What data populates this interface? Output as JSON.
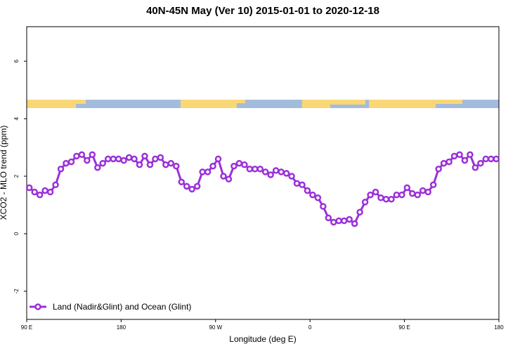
{
  "chart_data": {
    "type": "line",
    "title": "40N-45N May (Ver 10)   2015-01-01 to 2020-12-18",
    "x_label": "Longitude (deg E)",
    "y_label": "XCO2 - MLO trend (ppm)",
    "xlim": [
      90,
      540
    ],
    "ylim": [
      -2.98,
      7.2
    ],
    "xticks": [
      {
        "value": 90,
        "label": "90 E"
      },
      {
        "value": 180,
        "label": "180"
      },
      {
        "value": 270,
        "label": "90 W"
      },
      {
        "value": 360,
        "label": "0"
      },
      {
        "value": 450,
        "label": "90 E"
      },
      {
        "value": 540,
        "label": "180"
      }
    ],
    "yticks": [
      -2,
      0,
      2,
      4,
      6
    ],
    "legend_position": "bottom-left",
    "x": [
      92.5,
      97.5,
      102.5,
      107.5,
      112.5,
      117.5,
      122.5,
      127.5,
      132.5,
      137.5,
      142.5,
      147.5,
      152.5,
      157.5,
      162.5,
      167.5,
      172.5,
      177.5,
      182.5,
      187.5,
      192.5,
      197.5,
      202.5,
      207.5,
      212.5,
      217.5,
      222.5,
      227.5,
      232.5,
      237.5,
      242.5,
      247.5,
      252.5,
      257.5,
      262.5,
      267.5,
      272.5,
      277.5,
      282.5,
      287.5,
      292.5,
      297.5,
      302.5,
      307.5,
      312.5,
      317.5,
      322.5,
      327.5,
      332.5,
      337.5,
      342.5,
      347.5,
      352.5,
      357.5,
      362.5,
      367.5,
      372.5,
      377.5,
      382.5,
      387.5,
      392.5,
      397.5,
      402.5,
      407.5,
      412.5,
      417.5,
      422.5,
      427.5,
      432.5,
      437.5,
      442.5,
      447.5,
      452.5,
      457.5,
      462.5,
      467.5,
      472.5,
      477.5,
      482.5,
      487.5,
      492.5,
      497.5,
      502.5,
      507.5,
      512.5,
      517.5,
      522.5,
      527.5,
      532.5,
      537.5
    ],
    "series": [
      {
        "name": "Land (Nadir&Glint) and Ocean (Glint)",
        "color": "#9b30d9",
        "values": [
          1.6,
          1.45,
          1.35,
          1.5,
          1.45,
          1.7,
          2.25,
          2.45,
          2.5,
          2.7,
          2.75,
          2.55,
          2.75,
          2.3,
          2.45,
          2.6,
          2.6,
          2.6,
          2.55,
          2.65,
          2.6,
          2.4,
          2.7,
          2.4,
          2.6,
          2.65,
          2.4,
          2.45,
          2.35,
          1.8,
          1.65,
          1.55,
          1.65,
          2.15,
          2.15,
          2.35,
          2.6,
          2.0,
          1.9,
          2.35,
          2.45,
          2.4,
          2.25,
          2.25,
          2.25,
          2.15,
          2.05,
          2.2,
          2.15,
          2.1,
          2.0,
          1.75,
          1.7,
          1.5,
          1.35,
          1.25,
          0.95,
          0.55,
          0.4,
          0.45,
          0.45,
          0.5,
          0.35,
          0.75,
          1.1,
          1.35,
          1.45,
          1.25,
          1.2,
          1.2,
          1.35,
          1.35,
          1.6,
          1.4,
          1.35,
          1.5,
          1.45,
          1.7,
          2.25,
          2.45,
          2.5,
          2.7,
          2.75,
          2.55,
          2.75,
          2.3,
          2.45,
          2.6,
          2.6,
          2.6
        ]
      }
    ]
  }
}
